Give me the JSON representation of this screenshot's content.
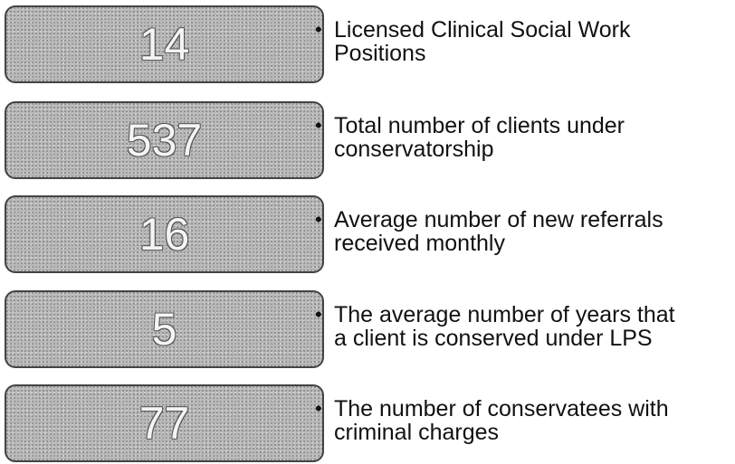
{
  "items": [
    {
      "number": 14,
      "lines": [
        "Licensed Clinical Social Work",
        "Positions"
      ]
    },
    {
      "number": 537,
      "lines": [
        "Total number of clients under",
        "conservatorship"
      ]
    },
    {
      "number": 16,
      "lines": [
        "Average number of new referrals",
        "received monthly"
      ]
    },
    {
      "number": 5,
      "lines": [
        "The average number of years that",
        "a client is conserved under LPS"
      ]
    },
    {
      "number": 77,
      "lines": [
        "The number of conservatees with",
        "criminal charges"
      ]
    }
  ]
}
